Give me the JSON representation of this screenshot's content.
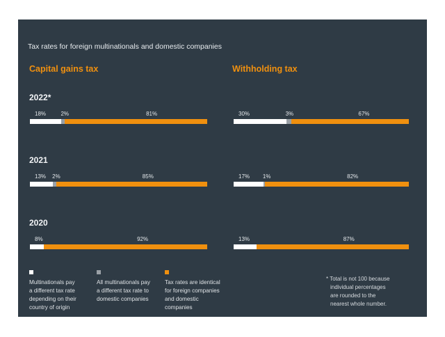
{
  "colors": {
    "background": "#2f3b45",
    "accent": "#f0900f",
    "white_segment": "#ffffff",
    "gray_segment": "#9aa0a6"
  },
  "chart_data": {
    "type": "bar",
    "subtype": "stacked-horizontal-100",
    "title": "Tax rates for foreign multinationals and domestic companies",
    "series_names": [
      "Multinationals pay a different tax rate depending on their country of origin",
      "All multinationals pay a different tax rate to domestic companies",
      "Tax rates are identical for foreign companies and domestic companies"
    ],
    "panels": [
      {
        "name": "Capital gains tax",
        "rows": [
          {
            "year": "2022*",
            "values": [
              18,
              2,
              81
            ]
          },
          {
            "year": "2021",
            "values": [
              13,
              2,
              85
            ]
          },
          {
            "year": "2020",
            "values": [
              8,
              0,
              92
            ]
          }
        ]
      },
      {
        "name": "Withholding tax",
        "rows": [
          {
            "year": "2022*",
            "values": [
              30,
              3,
              67
            ]
          },
          {
            "year": "2021",
            "values": [
              17,
              1,
              82
            ]
          },
          {
            "year": "2020",
            "values": [
              13,
              0,
              87
            ]
          }
        ]
      }
    ],
    "unit": "%",
    "footnote": "* Total is not 100 because individual percentages are rounded to the nearest whole number."
  },
  "legend": [
    {
      "label": "Multinationals pay\na different tax rate\ndepending on their\ncountry of origin",
      "color": "#ffffff"
    },
    {
      "label": "All multinationals pay\na different tax rate to\ndomestic companies",
      "color": "#9aa0a6"
    },
    {
      "label": "Tax rates are identical\nfor foreign companies\nand domestic\ncompanies",
      "color": "#f0900f"
    }
  ],
  "footnote_lines": [
    "* Total is not 100 because",
    "individual percentages",
    "are rounded to the",
    "nearest whole number."
  ]
}
